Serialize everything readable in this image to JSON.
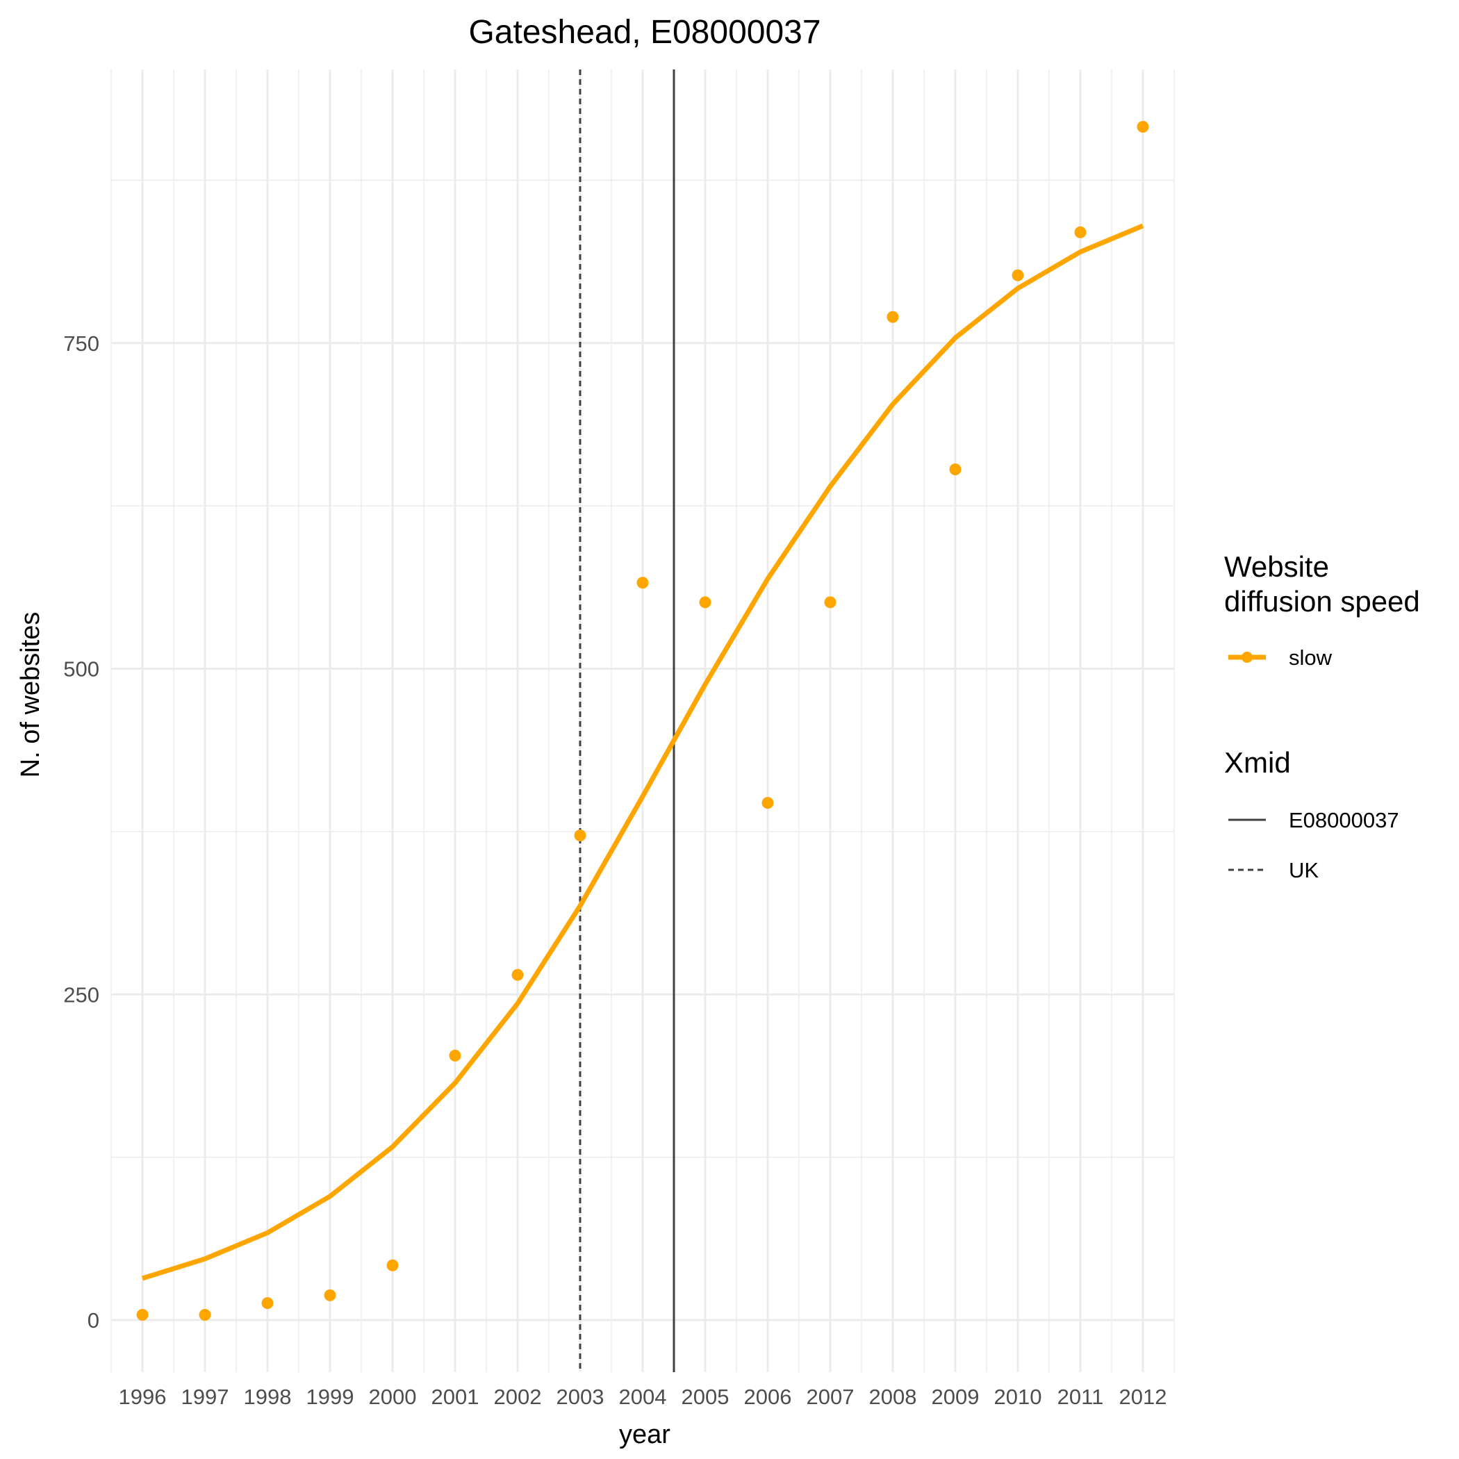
{
  "chart_data": {
    "type": "scatter",
    "title": "Gateshead, E08000037",
    "xlabel": "year",
    "ylabel": "N. of websites",
    "x": [
      1996,
      1997,
      1998,
      1999,
      2000,
      2001,
      2002,
      2003,
      2004,
      2005,
      2006,
      2007,
      2008,
      2009,
      2010,
      2011,
      2012
    ],
    "xlim": [
      1995.5,
      2012.5
    ],
    "ylim": [
      -40,
      960
    ],
    "yticks": [
      0,
      250,
      500,
      750
    ],
    "ytick_labels": [
      "0",
      "250",
      "500",
      "750"
    ],
    "grid": true,
    "legend_position": "right",
    "series": [
      {
        "name": "slow",
        "kind": "points",
        "color": "#FFA500",
        "values": [
          4,
          4,
          13,
          19,
          42,
          203,
          265,
          372,
          566,
          551,
          397,
          551,
          770,
          653,
          802,
          835,
          916
        ]
      },
      {
        "name": "slow",
        "kind": "fitted-line",
        "color": "#FFA500",
        "values": [
          32,
          47,
          67,
          95,
          133,
          182,
          243,
          318,
          402,
          488,
          569,
          640,
          703,
          754,
          792,
          820,
          840
        ]
      }
    ],
    "vlines": [
      {
        "name": "E08000037",
        "x": 2004.5,
        "style": "solid",
        "color": "#404040"
      },
      {
        "name": "UK",
        "x": 2003.0,
        "style": "dashed",
        "color": "#404040"
      }
    ],
    "legend": {
      "color_title_line1": "Website",
      "color_title_line2": "diffusion speed",
      "color_items": [
        "slow"
      ],
      "linetype_title": "Xmid",
      "linetype_items": [
        "E08000037",
        "UK"
      ]
    }
  }
}
